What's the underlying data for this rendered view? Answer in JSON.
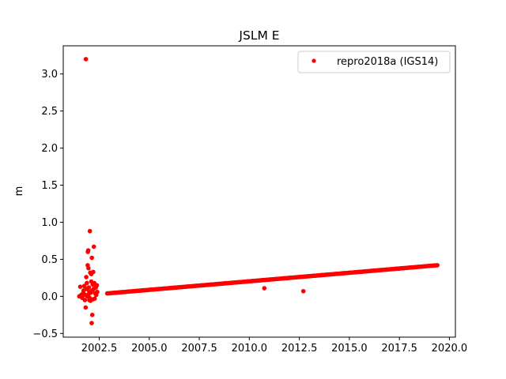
{
  "chart_data": {
    "type": "scatter",
    "title": "JSLM E",
    "xlabel": "",
    "ylabel": "m",
    "xlim": [
      2000.7,
      2020.3
    ],
    "ylim": [
      -0.55,
      3.38
    ],
    "xticks": [
      2002.5,
      2005.0,
      2007.5,
      2010.0,
      2012.5,
      2015.0,
      2017.5,
      2020.0
    ],
    "xtick_labels": [
      "2002.5",
      "2005.0",
      "2007.5",
      "2010.0",
      "2012.5",
      "2015.0",
      "2017.5",
      "2020.0"
    ],
    "yticks": [
      -0.5,
      0.0,
      0.5,
      1.0,
      1.5,
      2.0,
      2.5,
      3.0
    ],
    "ytick_labels": [
      "−0.5",
      "0.0",
      "0.5",
      "1.0",
      "1.5",
      "2.0",
      "2.5",
      "3.0"
    ],
    "grid": false,
    "legend_position": "top-right",
    "series": [
      {
        "name": "repro2018a (IGS14)",
        "color": "#ff0000",
        "marker": "circle",
        "trend": {
          "x_start": 2002.9,
          "x_end": 2019.4,
          "y_start": 0.04,
          "y_end": 0.42
        },
        "points": [
          [
            2001.5,
            0.0
          ],
          [
            2001.55,
            0.13
          ],
          [
            2001.6,
            0.02
          ],
          [
            2001.65,
            -0.02
          ],
          [
            2001.7,
            0.05
          ],
          [
            2001.72,
            0.08
          ],
          [
            2001.75,
            0.14
          ],
          [
            2001.78,
            -0.05
          ],
          [
            2001.8,
            0.02
          ],
          [
            2001.82,
            -0.15
          ],
          [
            2001.83,
            3.2
          ],
          [
            2001.85,
            0.26
          ],
          [
            2001.87,
            0.1
          ],
          [
            2001.88,
            0.18
          ],
          [
            2001.9,
            0.0
          ],
          [
            2001.92,
            0.42
          ],
          [
            2001.93,
            0.6
          ],
          [
            2001.95,
            0.62
          ],
          [
            2001.96,
            0.38
          ],
          [
            2001.98,
            0.12
          ],
          [
            2002.0,
            0.06
          ],
          [
            2002.02,
            -0.02
          ],
          [
            2002.03,
            0.88
          ],
          [
            2002.05,
            0.32
          ],
          [
            2002.06,
            -0.06
          ],
          [
            2002.08,
            0.05
          ],
          [
            2002.1,
            0.3
          ],
          [
            2002.12,
            -0.36
          ],
          [
            2002.13,
            0.52
          ],
          [
            2002.15,
            0.08
          ],
          [
            2002.17,
            0.16
          ],
          [
            2002.18,
            -0.04
          ],
          [
            2002.2,
            0.33
          ],
          [
            2002.22,
            0.1
          ],
          [
            2002.23,
            0.67
          ],
          [
            2002.25,
            0.18
          ],
          [
            2002.27,
            -0.03
          ],
          [
            2002.3,
            0.04
          ],
          [
            2002.33,
            0.12
          ],
          [
            2002.35,
            0.02
          ],
          [
            2002.38,
            0.15
          ],
          [
            2002.4,
            0.06
          ],
          [
            2002.15,
            -0.25
          ],
          [
            2002.1,
            0.2
          ],
          [
            2001.95,
            0.02
          ],
          [
            2002.0,
            -0.05
          ],
          [
            2010.75,
            0.11
          ],
          [
            2012.7,
            0.07
          ]
        ]
      }
    ]
  }
}
